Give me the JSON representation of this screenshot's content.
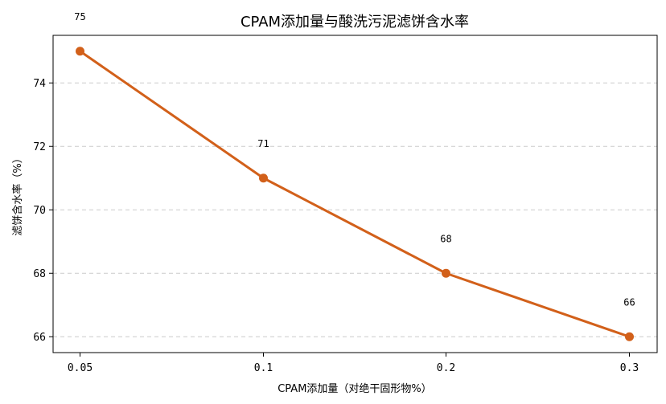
{
  "chart_data": {
    "type": "line",
    "title": "CPAM添加量与酸洗污泥滤饼含水率",
    "xlabel": "CPAM添加量（对绝干固形物%）",
    "ylabel": "滤饼含水率（%）",
    "categories": [
      "0.05",
      "0.1",
      "0.2",
      "0.3"
    ],
    "values": [
      75,
      71,
      68,
      66
    ],
    "data_labels": [
      "75",
      "71",
      "68",
      "66"
    ],
    "ylim": [
      65.5,
      75.5
    ],
    "yticks": [
      66,
      68,
      70,
      72,
      74
    ],
    "ytick_labels": [
      "66",
      "68",
      "70",
      "72",
      "74"
    ],
    "grid": "y-dashed",
    "legend": "none",
    "color": "#d2601a"
  }
}
